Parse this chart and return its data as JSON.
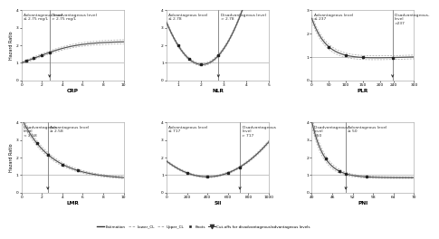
{
  "panels": [
    {
      "name": "CRP",
      "xlabel": "CRP",
      "xlim": [
        0,
        10.0
      ],
      "ylim": [
        0,
        4
      ],
      "xticks": [
        0,
        2.0,
        4.0,
        6.0,
        8.0,
        10.0
      ],
      "yticks": [
        0,
        1,
        2,
        3,
        4
      ],
      "knots": [
        0.5,
        1.2,
        2.0,
        2.75
      ],
      "cutoff": 2.75,
      "adv_label": "Advantageous level\n≤ 2.75 mg/L",
      "disadv_label": "Disadvantageous level\n> 2.75 mg/L",
      "adv_side": "left",
      "curve_type": "crp",
      "row": 0,
      "col": 0
    },
    {
      "name": "NLR",
      "xlabel": "NLR",
      "xlim": [
        0.5,
        5.0
      ],
      "ylim": [
        0,
        4
      ],
      "xticks": [
        1.0,
        2.0,
        3.0,
        4.0,
        5.0
      ],
      "yticks": [
        0,
        1,
        2,
        3,
        4
      ],
      "knots": [
        1.0,
        1.5,
        2.0,
        2.78
      ],
      "cutoff": 2.78,
      "adv_label": "Advantageous level\n≤ 2.78",
      "disadv_label": "Disadvantageous level\n> 2.78",
      "adv_side": "left",
      "curve_type": "nlr",
      "row": 0,
      "col": 1
    },
    {
      "name": "PLR",
      "xlabel": "PLR",
      "xlim": [
        0,
        300
      ],
      "ylim": [
        0,
        3
      ],
      "xticks": [
        0,
        50,
        100,
        150,
        200,
        240,
        300
      ],
      "yticks": [
        0,
        1,
        2,
        3
      ],
      "knots": [
        50,
        100,
        150,
        237
      ],
      "cutoff": 237,
      "adv_label": "Advantageous level\n≤ 237",
      "disadv_label": "Disadvantageous-\nlevel\n>237",
      "adv_side": "left",
      "curve_type": "plr",
      "row": 0,
      "col": 2
    },
    {
      "name": "LMR",
      "xlabel": "LMR",
      "xlim": [
        0,
        10.0
      ],
      "ylim": [
        0,
        4
      ],
      "xticks": [
        0,
        2.0,
        4.0,
        6.0,
        8.0,
        10.0
      ],
      "yticks": [
        0,
        1,
        2,
        3,
        4
      ],
      "knots": [
        1.5,
        2.58,
        4.0,
        5.5
      ],
      "cutoff": 2.58,
      "adv_label": "Advantageous level\n≥ 2.58",
      "disadv_label": "Disadvantageous\nlevel\n< 2.58",
      "adv_side": "right",
      "curve_type": "lmr",
      "row": 1,
      "col": 0
    },
    {
      "name": "SII",
      "xlabel": "SII",
      "xlim": [
        0,
        1000
      ],
      "ylim": [
        0,
        4
      ],
      "xticks": [
        0,
        200,
        400,
        600,
        800,
        1000
      ],
      "yticks": [
        0,
        1,
        2,
        3,
        4
      ],
      "knots": [
        200,
        400,
        600,
        717
      ],
      "cutoff": 717,
      "adv_label": "Advantageous level\n≤ 717",
      "disadv_label": "Disadvantageous\nlevel\n> 717",
      "adv_side": "left",
      "curve_type": "sii",
      "row": 1,
      "col": 1
    },
    {
      "name": "PNI",
      "xlabel": "PNI",
      "xlim": [
        40,
        70
      ],
      "ylim": [
        0,
        4
      ],
      "xticks": [
        40,
        46,
        52,
        58,
        64,
        70
      ],
      "yticks": [
        0,
        1,
        2,
        3,
        4
      ],
      "knots": [
        44,
        48,
        50,
        56
      ],
      "cutoff": 50,
      "adv_label": "Advantageous level\n≥ 50",
      "disadv_label": "Disadvantageous\nlevel\n<50",
      "adv_side": "right",
      "curve_type": "pni",
      "row": 1,
      "col": 2
    }
  ],
  "ylabel": "Hazard Ratio",
  "bg_color": "#ffffff",
  "grid_color": "#bbbbbb",
  "text_color": "#333333",
  "line_color": "#555555",
  "ci_color": "#aaaaaa"
}
